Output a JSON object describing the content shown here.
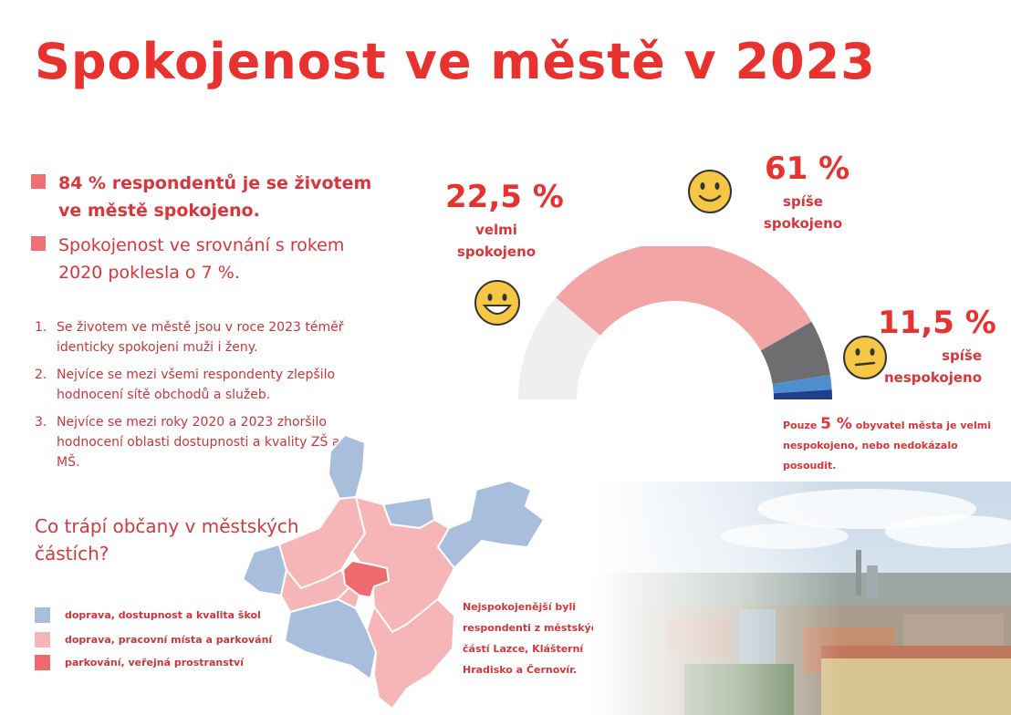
{
  "title": "Spokojenost ve městě v 2023",
  "key_points": [
    {
      "text_line1": "84 % respondentů je se životem",
      "text_line2": "ve městě spokojeno."
    },
    {
      "text_line1": "Spokojenost ve srovnání s rokem",
      "text_line2": "2020 poklesla o 7 %."
    }
  ],
  "findings": [
    {
      "num": "1.",
      "text": "Se životem ve městě jsou v roce 2023 téměř identicky spokojeni muži i ženy."
    },
    {
      "num": "2.",
      "text": "Nejvíce se mezi všemi respondenty zlepšilo hodnocení sítě obchodů a služeb."
    },
    {
      "num": "3.",
      "text": "Nejvíce se mezi roky 2020 a 2023 zhoršilo hodnocení oblasti dostupnosti a kvality ZŠ a MŠ."
    }
  ],
  "question": "Co trápí občany v městských částích?",
  "map_legend": [
    {
      "label": "doprava, dostupnost a kvalita škol",
      "color": "#a9bedd"
    },
    {
      "label": "doprava, pracovní místa a parkování",
      "color": "#f6b6b8"
    },
    {
      "label": "parkování, veřejná prostranství",
      "color": "#ef6a6f"
    }
  ],
  "map_note": "Nejspokojenější byli respondenti z městských částí Lazce, Klášterní Hradisko a Černovír.",
  "gauge_note": {
    "prefix": "Pouze",
    "value": "5 %",
    "suffix": "obyvatel  města je velmi nespokojeno, nebo nedokázalo posoudit."
  },
  "chart_data": {
    "type": "pie",
    "title": "",
    "slices": [
      {
        "value": 22.5,
        "percent_label": "22,5 %",
        "label": "velmi spokojeno",
        "color": "#efefef",
        "icon": "big-smile-face-icon"
      },
      {
        "value": 61,
        "percent_label": "61 %",
        "label": "spíše spokojeno",
        "color": "#f2a5a4",
        "icon": "smile-face-icon"
      },
      {
        "value": 11.5,
        "percent_label": "11,5 %",
        "label": "spíše nespokojeno",
        "color": "#6e6e70",
        "icon": "neutral-face-icon"
      },
      {
        "value": 3,
        "color": "#4f8fd0"
      },
      {
        "value": 2,
        "color": "#1f3f8e"
      }
    ]
  }
}
